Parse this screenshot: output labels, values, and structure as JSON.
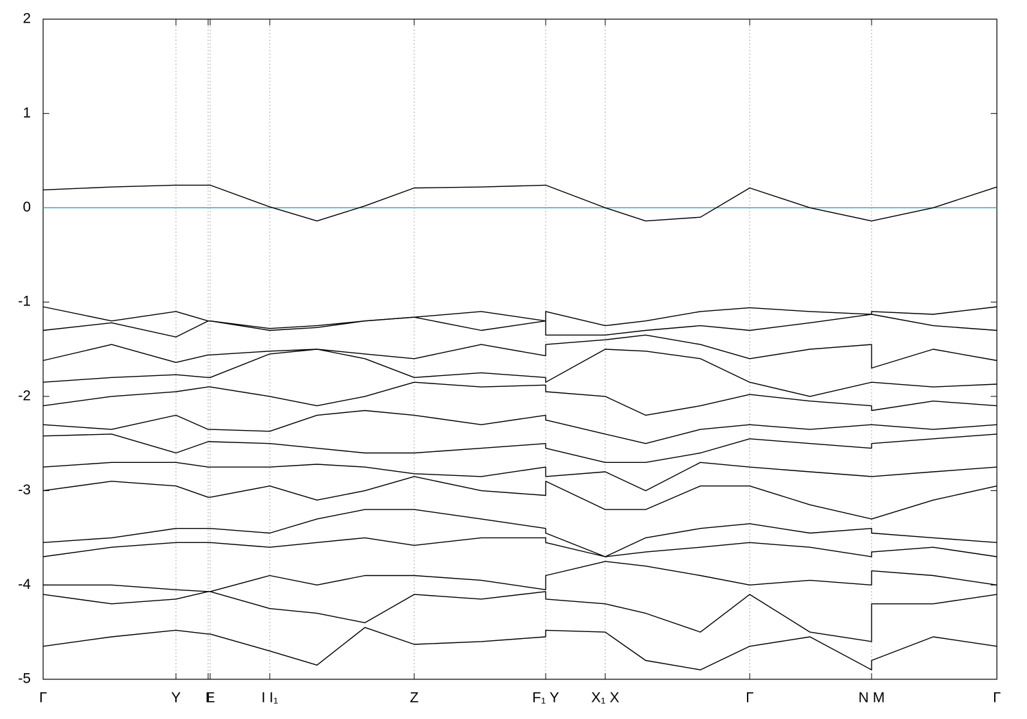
{
  "chart_data": {
    "type": "line",
    "x": [
      0,
      0.1,
      0.194,
      0.241,
      0.244,
      0.331,
      0.4,
      0.47,
      0.542,
      0.64,
      0.734,
      0.734,
      0.821,
      0.88,
      0.96,
      1.032,
      1.12,
      1.21,
      1.21,
      1.3,
      1.393
    ],
    "xlim": [
      0,
      1.393
    ],
    "xticks": [
      {
        "value": 0,
        "label": "Γ"
      },
      {
        "value": 0.194,
        "label": "Y"
      },
      {
        "value": 0.241,
        "label": "I"
      },
      {
        "value": 0.244,
        "label": "E"
      },
      {
        "value": 0.331,
        "label": "I I₁"
      },
      {
        "value": 0.542,
        "label": "Z"
      },
      {
        "value": 0.734,
        "label": "F₁ Y"
      },
      {
        "value": 0.821,
        "label": "X₁ X"
      },
      {
        "value": 1.032,
        "label": "Γ"
      },
      {
        "value": 1.21,
        "label": "N M"
      },
      {
        "value": 1.393,
        "label": "Γ"
      }
    ],
    "ylim": [
      -5,
      2
    ],
    "yticks": [
      -5,
      -4,
      -3,
      -2,
      -1,
      0,
      1,
      2
    ],
    "color": "#000000",
    "hline": {
      "value": 0,
      "color": "#3fa9c6"
    },
    "grid": true,
    "series": [
      {
        "values": [
          0.19,
          0.22,
          0.24,
          0.24,
          0.24,
          0.01,
          -0.14,
          0.02,
          0.21,
          0.22,
          0.24,
          0.24,
          0.0,
          -0.14,
          -0.1,
          0.21,
          0.0,
          -0.14,
          -0.14,
          0.0,
          0.22
        ]
      },
      {
        "values": [
          -1.05,
          -1.2,
          -1.1,
          -1.2,
          -1.2,
          -1.28,
          -1.25,
          -1.2,
          -1.16,
          -1.1,
          -1.2,
          -1.1,
          -1.25,
          -1.2,
          -1.1,
          -1.06,
          -1.1,
          -1.13,
          -1.1,
          -1.13,
          -1.05
        ]
      },
      {
        "values": [
          -1.3,
          -1.22,
          -1.37,
          -1.2,
          -1.2,
          -1.3,
          -1.27,
          -1.2,
          -1.16,
          -1.3,
          -1.2,
          -1.35,
          -1.35,
          -1.3,
          -1.25,
          -1.3,
          -1.22,
          -1.13,
          -1.13,
          -1.25,
          -1.3
        ]
      },
      {
        "values": [
          -1.62,
          -1.45,
          -1.64,
          -1.56,
          -1.56,
          -1.52,
          -1.5,
          -1.55,
          -1.6,
          -1.45,
          -1.57,
          -1.45,
          -1.4,
          -1.35,
          -1.45,
          -1.6,
          -1.5,
          -1.45,
          -1.7,
          -1.5,
          -1.62
        ]
      },
      {
        "values": [
          -1.85,
          -1.8,
          -1.77,
          -1.8,
          -1.8,
          -1.55,
          -1.5,
          -1.6,
          -1.8,
          -1.75,
          -1.8,
          -1.85,
          -1.5,
          -1.52,
          -1.6,
          -1.85,
          -2.0,
          -1.85,
          -1.85,
          -1.9,
          -1.87
        ]
      },
      {
        "values": [
          -2.1,
          -2.0,
          -1.95,
          -1.9,
          -1.9,
          -2.0,
          -2.1,
          -2.0,
          -1.85,
          -1.9,
          -1.88,
          -1.95,
          -2.0,
          -2.2,
          -2.1,
          -1.98,
          -2.05,
          -2.1,
          -2.15,
          -2.05,
          -2.1
        ]
      },
      {
        "values": [
          -2.3,
          -2.35,
          -2.2,
          -2.35,
          -2.35,
          -2.37,
          -2.2,
          -2.15,
          -2.2,
          -2.3,
          -2.2,
          -2.25,
          -2.4,
          -2.5,
          -2.35,
          -2.3,
          -2.35,
          -2.3,
          -2.3,
          -2.35,
          -2.3
        ]
      },
      {
        "values": [
          -2.42,
          -2.4,
          -2.6,
          -2.48,
          -2.48,
          -2.5,
          -2.55,
          -2.6,
          -2.6,
          -2.55,
          -2.5,
          -2.55,
          -2.7,
          -2.7,
          -2.6,
          -2.45,
          -2.5,
          -2.55,
          -2.5,
          -2.45,
          -2.4
        ]
      },
      {
        "values": [
          -2.75,
          -2.7,
          -2.7,
          -2.75,
          -2.75,
          -2.75,
          -2.72,
          -2.75,
          -2.82,
          -2.85,
          -2.75,
          -2.85,
          -2.8,
          -3.0,
          -2.7,
          -2.75,
          -2.8,
          -2.85,
          -2.85,
          -2.8,
          -2.75
        ]
      },
      {
        "values": [
          -3.0,
          -2.9,
          -2.95,
          -3.07,
          -3.07,
          -2.95,
          -3.1,
          -3.0,
          -2.85,
          -3.0,
          -3.05,
          -2.9,
          -3.2,
          -3.2,
          -2.95,
          -2.95,
          -3.15,
          -3.3,
          -3.3,
          -3.1,
          -2.95
        ]
      },
      {
        "values": [
          -3.55,
          -3.5,
          -3.4,
          -3.4,
          -3.4,
          -3.45,
          -3.3,
          -3.2,
          -3.2,
          -3.3,
          -3.4,
          -3.45,
          -3.7,
          -3.5,
          -3.4,
          -3.35,
          -3.45,
          -3.4,
          -3.45,
          -3.5,
          -3.55
        ]
      },
      {
        "values": [
          -3.7,
          -3.6,
          -3.55,
          -3.55,
          -3.55,
          -3.6,
          -3.55,
          -3.5,
          -3.58,
          -3.5,
          -3.5,
          -3.55,
          -3.7,
          -3.65,
          -3.6,
          -3.55,
          -3.6,
          -3.7,
          -3.65,
          -3.6,
          -3.7
        ]
      },
      {
        "values": [
          -4.0,
          -4.0,
          -4.05,
          -4.07,
          -4.07,
          -3.9,
          -4.0,
          -3.9,
          -3.9,
          -3.95,
          -4.05,
          -3.9,
          -3.75,
          -3.8,
          -3.9,
          -4.0,
          -3.95,
          -4.0,
          -3.85,
          -3.9,
          -4.0
        ]
      },
      {
        "values": [
          -4.1,
          -4.2,
          -4.15,
          -4.07,
          -4.07,
          -4.25,
          -4.3,
          -4.4,
          -4.1,
          -4.15,
          -4.07,
          -4.15,
          -4.2,
          -4.3,
          -4.5,
          -4.1,
          -4.5,
          -4.6,
          -4.2,
          -4.2,
          -4.1
        ]
      },
      {
        "values": [
          -4.65,
          -4.55,
          -4.48,
          -4.52,
          -4.52,
          -4.7,
          -4.85,
          -4.45,
          -4.63,
          -4.6,
          -4.55,
          -4.48,
          -4.5,
          -4.8,
          -4.9,
          -4.65,
          -4.55,
          -4.9,
          -4.8,
          -4.55,
          -4.65
        ]
      }
    ]
  }
}
